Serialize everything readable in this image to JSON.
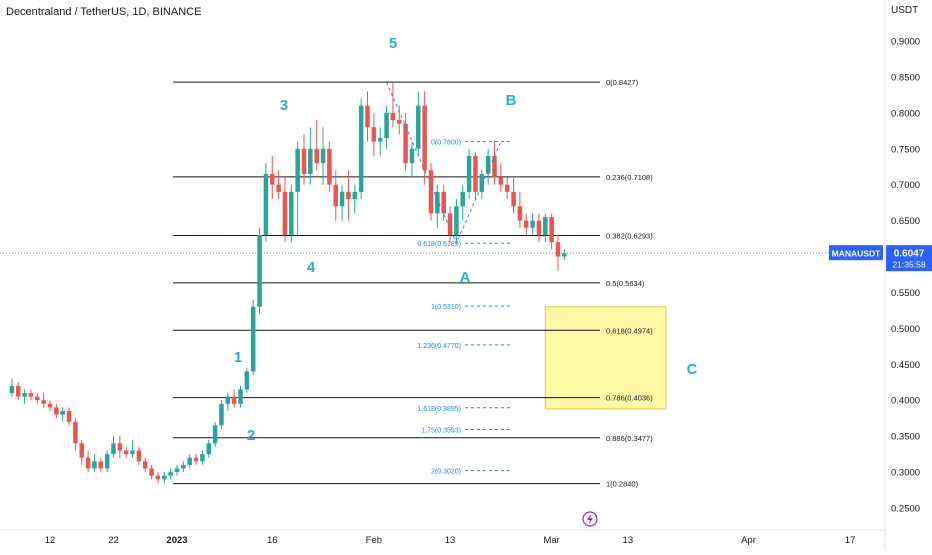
{
  "header": {
    "title": "Decentraland / TetherUS, 1D, BINANCE",
    "axis_unit": "USDT"
  },
  "price_label": {
    "symbol": "MANAUSDT",
    "price": "0.6047",
    "countdown": "21:35:58",
    "color": "#2962ff"
  },
  "colors": {
    "up": "#26a69a",
    "down": "#ef5350",
    "wave_label": "#22b3c4",
    "fib_blue": "#1e88e5",
    "line": "#131722",
    "box": "#fff9a6",
    "box_border": "#d8cc3a",
    "flash_icon": "#9c27b0"
  },
  "icons": {
    "flash": "lightning-icon"
  },
  "chart_data": {
    "type": "candlestick",
    "title": "Decentraland / TetherUS, 1D, BINANCE",
    "ylabel": "USDT",
    "ylim": [
      0.225,
      0.935
    ],
    "yticks": [
      "0.9000",
      "0.8500",
      "0.8000",
      "0.7500",
      "0.7000",
      "0.6500",
      "0.5500",
      "0.5000",
      "0.4500",
      "0.4000",
      "0.3500",
      "0.3000",
      "0.2500"
    ],
    "xticks": [
      {
        "label": "12",
        "day": -20
      },
      {
        "label": "22",
        "day": -10
      },
      {
        "label": "2023",
        "day": 0
      },
      {
        "label": "16",
        "day": 15
      },
      {
        "label": "Feb",
        "day": 31
      },
      {
        "label": "13",
        "day": 43
      },
      {
        "label": "Mar",
        "day": 59
      },
      {
        "label": "13",
        "day": 71
      },
      {
        "label": "Apr",
        "day": 90
      },
      {
        "label": "17",
        "day": 106
      }
    ],
    "candles": [
      [
        0.41,
        0.43,
        0.405,
        0.42
      ],
      [
        0.42,
        0.425,
        0.4,
        0.405
      ],
      [
        0.405,
        0.415,
        0.395,
        0.41
      ],
      [
        0.41,
        0.415,
        0.4,
        0.405
      ],
      [
        0.405,
        0.41,
        0.395,
        0.4
      ],
      [
        0.4,
        0.41,
        0.39,
        0.395
      ],
      [
        0.395,
        0.4,
        0.385,
        0.39
      ],
      [
        0.39,
        0.395,
        0.375,
        0.38
      ],
      [
        0.38,
        0.39,
        0.37,
        0.385
      ],
      [
        0.385,
        0.39,
        0.365,
        0.37
      ],
      [
        0.37,
        0.375,
        0.33,
        0.34
      ],
      [
        0.34,
        0.345,
        0.31,
        0.32
      ],
      [
        0.32,
        0.33,
        0.3,
        0.305
      ],
      [
        0.305,
        0.325,
        0.3,
        0.315
      ],
      [
        0.315,
        0.32,
        0.3,
        0.305
      ],
      [
        0.305,
        0.33,
        0.3,
        0.325
      ],
      [
        0.325,
        0.35,
        0.32,
        0.34
      ],
      [
        0.34,
        0.35,
        0.32,
        0.33
      ],
      [
        0.33,
        0.335,
        0.32,
        0.325
      ],
      [
        0.325,
        0.345,
        0.32,
        0.33
      ],
      [
        0.33,
        0.335,
        0.31,
        0.315
      ],
      [
        0.315,
        0.32,
        0.3,
        0.305
      ],
      [
        0.305,
        0.31,
        0.29,
        0.295
      ],
      [
        0.295,
        0.3,
        0.284,
        0.29
      ],
      [
        0.29,
        0.3,
        0.284,
        0.295
      ],
      [
        0.295,
        0.305,
        0.29,
        0.3
      ],
      [
        0.3,
        0.31,
        0.295,
        0.305
      ],
      [
        0.305,
        0.315,
        0.3,
        0.31
      ],
      [
        0.31,
        0.325,
        0.305,
        0.32
      ],
      [
        0.32,
        0.325,
        0.31,
        0.315
      ],
      [
        0.315,
        0.33,
        0.31,
        0.325
      ],
      [
        0.325,
        0.345,
        0.32,
        0.34
      ],
      [
        0.34,
        0.37,
        0.335,
        0.365
      ],
      [
        0.365,
        0.4,
        0.36,
        0.395
      ],
      [
        0.395,
        0.41,
        0.385,
        0.405
      ],
      [
        0.405,
        0.415,
        0.39,
        0.395
      ],
      [
        0.395,
        0.42,
        0.39,
        0.415
      ],
      [
        0.415,
        0.445,
        0.41,
        0.44
      ],
      [
        0.44,
        0.54,
        0.435,
        0.53
      ],
      [
        0.53,
        0.64,
        0.52,
        0.63
      ],
      [
        0.63,
        0.73,
        0.62,
        0.715
      ],
      [
        0.715,
        0.74,
        0.68,
        0.7
      ],
      [
        0.7,
        0.72,
        0.68,
        0.69
      ],
      [
        0.69,
        0.71,
        0.62,
        0.63
      ],
      [
        0.63,
        0.7,
        0.62,
        0.69
      ],
      [
        0.69,
        0.76,
        0.63,
        0.75
      ],
      [
        0.75,
        0.77,
        0.7,
        0.715
      ],
      [
        0.715,
        0.78,
        0.7,
        0.75
      ],
      [
        0.75,
        0.79,
        0.72,
        0.73
      ],
      [
        0.73,
        0.78,
        0.7,
        0.75
      ],
      [
        0.75,
        0.76,
        0.69,
        0.7
      ],
      [
        0.7,
        0.72,
        0.65,
        0.67
      ],
      [
        0.67,
        0.7,
        0.65,
        0.69
      ],
      [
        0.69,
        0.72,
        0.65,
        0.68
      ],
      [
        0.68,
        0.7,
        0.66,
        0.69
      ],
      [
        0.69,
        0.82,
        0.68,
        0.81
      ],
      [
        0.81,
        0.83,
        0.76,
        0.78
      ],
      [
        0.78,
        0.8,
        0.74,
        0.76
      ],
      [
        0.76,
        0.78,
        0.74,
        0.765
      ],
      [
        0.765,
        0.81,
        0.75,
        0.8
      ],
      [
        0.8,
        0.8427,
        0.78,
        0.79
      ],
      [
        0.79,
        0.81,
        0.77,
        0.785
      ],
      [
        0.785,
        0.8,
        0.72,
        0.73
      ],
      [
        0.73,
        0.76,
        0.71,
        0.75
      ],
      [
        0.75,
        0.83,
        0.74,
        0.81
      ],
      [
        0.81,
        0.83,
        0.7,
        0.72
      ],
      [
        0.72,
        0.73,
        0.65,
        0.66
      ],
      [
        0.66,
        0.7,
        0.64,
        0.69
      ],
      [
        0.69,
        0.7,
        0.65,
        0.66
      ],
      [
        0.66,
        0.67,
        0.62,
        0.63
      ],
      [
        0.63,
        0.68,
        0.6185,
        0.67
      ],
      [
        0.67,
        0.7,
        0.65,
        0.69
      ],
      [
        0.69,
        0.75,
        0.68,
        0.74
      ],
      [
        0.74,
        0.745,
        0.68,
        0.69
      ],
      [
        0.69,
        0.72,
        0.68,
        0.715
      ],
      [
        0.715,
        0.75,
        0.7,
        0.74
      ],
      [
        0.74,
        0.76,
        0.7,
        0.71
      ],
      [
        0.71,
        0.73,
        0.69,
        0.7
      ],
      [
        0.7,
        0.71,
        0.68,
        0.69
      ],
      [
        0.69,
        0.71,
        0.66,
        0.67
      ],
      [
        0.67,
        0.69,
        0.64,
        0.65
      ],
      [
        0.65,
        0.66,
        0.63,
        0.64
      ],
      [
        0.64,
        0.66,
        0.63,
        0.65
      ],
      [
        0.65,
        0.66,
        0.62,
        0.63
      ],
      [
        0.63,
        0.66,
        0.62,
        0.655
      ],
      [
        0.655,
        0.66,
        0.61,
        0.62
      ],
      [
        0.62,
        0.63,
        0.58,
        0.6
      ],
      [
        0.6,
        0.61,
        0.595,
        0.6047
      ]
    ],
    "first_candle_day": -26,
    "fib_levels": [
      {
        "ratio": "0",
        "value": 0.8427
      },
      {
        "ratio": "0.236",
        "value": 0.7108
      },
      {
        "ratio": "0.382",
        "value": 0.6293
      },
      {
        "ratio": "0.5",
        "value": 0.5634
      },
      {
        "ratio": "0.618",
        "value": 0.4974
      },
      {
        "ratio": "0.786",
        "value": 0.4036
      },
      {
        "ratio": "0.886",
        "value": 0.3477
      },
      {
        "ratio": "1",
        "value": 0.284
      }
    ],
    "fib_extension": [
      {
        "ratio": "0",
        "value": 0.76
      },
      {
        "ratio": "0.618",
        "value": 0.6185
      },
      {
        "ratio": "1",
        "value": 0.531
      },
      {
        "ratio": "1.236",
        "value": 0.477
      },
      {
        "ratio": "1.618",
        "value": 0.3895
      },
      {
        "ratio": "1.75",
        "value": 0.3593
      },
      {
        "ratio": "2",
        "value": 0.302
      }
    ],
    "wave_labels": [
      "1",
      "2",
      "3",
      "4",
      "5",
      "A",
      "B",
      "C"
    ],
    "target_zone": {
      "from": 0.53,
      "to": 0.388,
      "day_from": 58,
      "day_to": 77
    },
    "abc_path": [
      {
        "day": 33,
        "value": 0.8427
      },
      {
        "day": 44,
        "value": 0.6185
      },
      {
        "day": 51,
        "value": 0.76
      }
    ]
  }
}
